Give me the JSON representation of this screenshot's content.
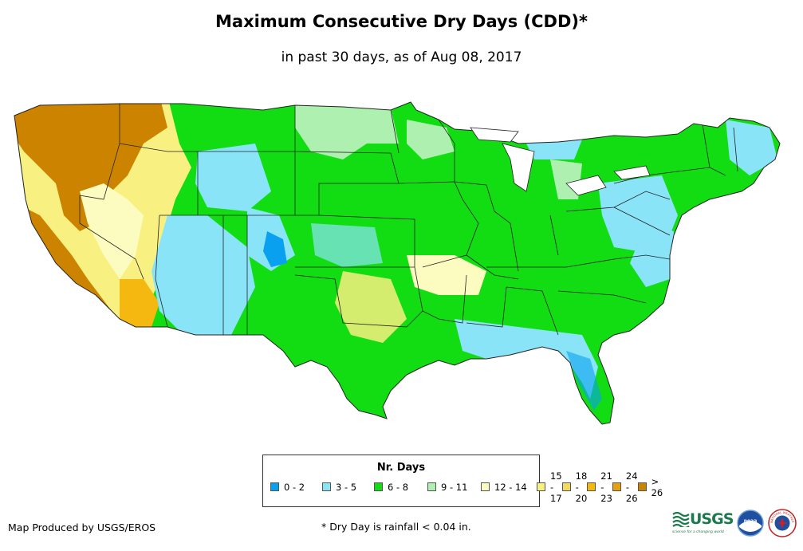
{
  "title": "Maximum Consecutive Dry Days (CDD)*",
  "subtitle": "in past 30 days, as of Aug 08, 2017",
  "legend": {
    "title": "Nr. Days",
    "items": [
      {
        "label": "0 - 2",
        "color": "#0aa0f0"
      },
      {
        "label": "3 - 5",
        "color": "#8ae4f8"
      },
      {
        "label": "6 - 8",
        "color": "#12dc12"
      },
      {
        "label": "9 - 11",
        "color": "#aef0b0"
      },
      {
        "label": "12 - 14",
        "color": "#fcfcc0"
      },
      {
        "label": "15 - 17",
        "color": "#f8f080"
      },
      {
        "label": "18 - 20",
        "color": "#f4d860"
      },
      {
        "label": "21 - 23",
        "color": "#f4b810"
      },
      {
        "label": "24 - 26",
        "color": "#e8a010"
      },
      {
        "label": "> 26",
        "color": "#cc8400"
      }
    ]
  },
  "credit": "Map Produced by USGS/EROS",
  "footnote": "* Dry Day is rainfall < 0.04 in.",
  "logos": {
    "usgs_text": "USGS",
    "usgs_tagline": "science for a changing world",
    "noaa_text": "noaa",
    "nws_text": "NATIONAL WEATHER SERVICE"
  }
}
